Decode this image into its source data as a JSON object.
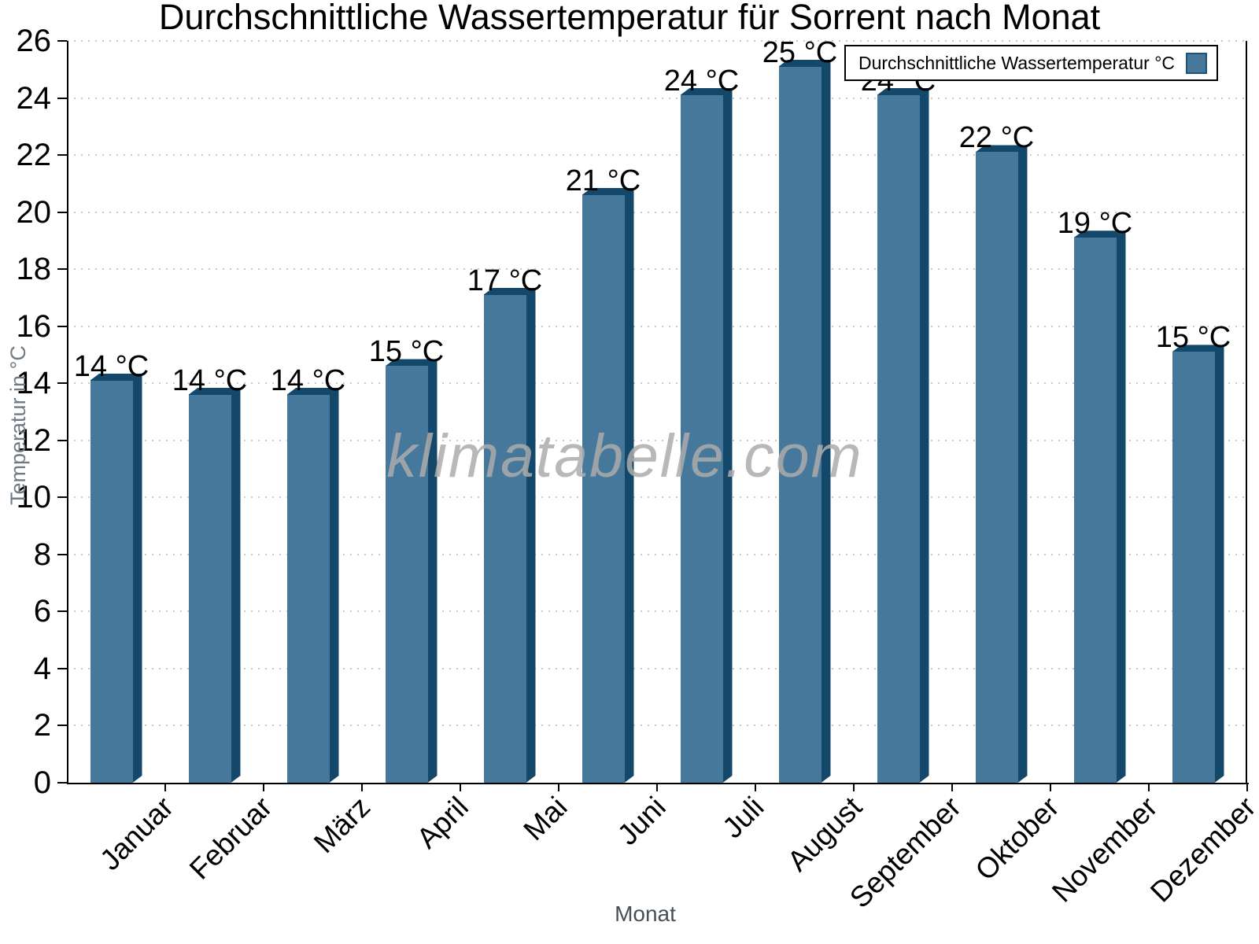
{
  "watermark": "klimatabelle.com",
  "chart_data": {
    "type": "bar",
    "title": "Durchschnittliche Wassertemperatur für Sorrent nach Monat",
    "xlabel": "Monat",
    "ylabel": "Temperatur in °C",
    "legend_label": "Durchschnittliche Wassertemperatur °C",
    "legend_position": "top-right",
    "categories": [
      "Januar",
      "Februar",
      "März",
      "April",
      "Mai",
      "Juni",
      "Juli",
      "August",
      "September",
      "Oktober",
      "November",
      "Dezember"
    ],
    "values": [
      14.1,
      13.6,
      13.6,
      14.6,
      17.1,
      20.6,
      24.1,
      25.1,
      24.1,
      22.1,
      19.1,
      15.1
    ],
    "value_labels": [
      "14 °C",
      "14 °C",
      "14 °C",
      "15 °C",
      "17 °C",
      "21 °C",
      "24 °C",
      "25 °C",
      "24 °C",
      "22 °C",
      "19 °C",
      "15 °C"
    ],
    "ylim": [
      0,
      26
    ],
    "yticks": [
      0,
      2,
      4,
      6,
      8,
      10,
      12,
      14,
      16,
      18,
      20,
      22,
      24,
      26
    ],
    "grid": "dotted-horizontal",
    "colors": {
      "bar_face": "#45789B",
      "bar_side": "#14486B",
      "legend_swatch_border": "#1F5273",
      "grid": "#C9C9C9",
      "axis": "#000000",
      "axis_title": "#6E7A84",
      "watermark": "#ACACAC"
    }
  }
}
